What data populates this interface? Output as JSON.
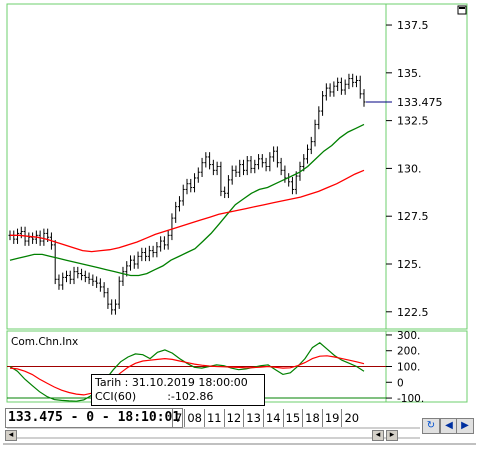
{
  "chart_data": [
    {
      "type": "line",
      "title": "",
      "last_price_label": "133.475",
      "ylim": [
        121.6,
        138.6
      ],
      "y_ticks": [
        "137.5",
        "135.",
        "132.5",
        "130.",
        "127.5",
        "125.",
        "122.5"
      ],
      "y_tick_values": [
        137.5,
        135,
        132.5,
        130,
        127.5,
        125,
        122.5
      ],
      "grid": false,
      "series": [
        {
          "style": "bars",
          "color": "#000000",
          "values": [
            126.5,
            126.3,
            126.6,
            126.7,
            126.2,
            126.4,
            126.3,
            126.5,
            126.2,
            126.6,
            126.4,
            126.0,
            124.2,
            123.9,
            124.3,
            124.4,
            124.2,
            124.6,
            124.5,
            124.4,
            124.3,
            124.2,
            124.1,
            124.0,
            123.8,
            123.5,
            122.9,
            122.6,
            122.9,
            124.1,
            124.6,
            124.9,
            125.2,
            125.0,
            125.4,
            125.6,
            125.4,
            125.7,
            125.6,
            125.9,
            126.2,
            126.0,
            126.5,
            127.4,
            128.0,
            128.3,
            128.9,
            129.2,
            129.0,
            129.5,
            129.8,
            130.3,
            130.6,
            130.2,
            129.9,
            130.1,
            128.8,
            128.7,
            129.4,
            129.9,
            129.8,
            130.2,
            129.9,
            130.4,
            130.0,
            130.2,
            130.5,
            130.3,
            130.1,
            130.6,
            130.9,
            130.3,
            129.9,
            129.5,
            129.3,
            128.9,
            129.6,
            130.1,
            130.5,
            131.0,
            131.4,
            132.3,
            133.0,
            133.8,
            134.2,
            134.0,
            134.3,
            134.5,
            134.1,
            134.4,
            134.7,
            134.5,
            134.6,
            133.9,
            133.475
          ]
        },
        {
          "color": "#008000",
          "values": [
            125.2,
            125.3,
            125.4,
            125.5,
            125.5,
            125.4,
            125.3,
            125.2,
            125.1,
            125.0,
            124.9,
            124.8,
            124.7,
            124.6,
            124.5,
            124.4,
            124.4,
            124.5,
            124.7,
            124.9,
            125.2,
            125.4,
            125.6,
            125.8,
            126.2,
            126.6,
            127.1,
            127.6,
            128.1,
            128.4,
            128.7,
            128.9,
            129.0,
            129.2,
            129.4,
            129.6,
            129.8,
            130.1,
            130.5,
            130.9,
            131.2,
            131.6,
            131.9,
            132.1,
            132.3
          ]
        },
        {
          "color": "#ff0000",
          "values": [
            126.5,
            126.5,
            126.45,
            126.4,
            126.3,
            126.15,
            126.0,
            125.85,
            125.7,
            125.65,
            125.7,
            125.75,
            125.85,
            126.0,
            126.15,
            126.35,
            126.55,
            126.7,
            126.85,
            127.0,
            127.15,
            127.3,
            127.45,
            127.6,
            127.7,
            127.8,
            127.9,
            128.0,
            128.1,
            128.2,
            128.3,
            128.4,
            128.5,
            128.65,
            128.8,
            129.0,
            129.2,
            129.45,
            129.7,
            129.9
          ]
        }
      ],
      "x_ticks": [
        "7",
        "08",
        "11",
        "12",
        "13",
        "14",
        "15",
        "18",
        "19",
        "20"
      ]
    },
    {
      "type": "line",
      "title": "Com.Chn.Inx",
      "ylim": [
        -125,
        325
      ],
      "y_ticks": [
        "300.",
        "200.",
        "100.",
        "0",
        "-100."
      ],
      "y_tick_values": [
        300,
        200,
        100,
        0,
        -100
      ],
      "reference_lines": [
        100,
        -100
      ],
      "series": [
        {
          "color": "#008000",
          "values": [
            100,
            70,
            20,
            -20,
            -60,
            -90,
            -110,
            -115,
            -118,
            -120,
            -112,
            -85,
            -40,
            20,
            80,
            130,
            160,
            180,
            175,
            150,
            190,
            205,
            185,
            150,
            120,
            95,
            90,
            100,
            110,
            105,
            90,
            80,
            85,
            95,
            105,
            110,
            80,
            50,
            60,
            100,
            150,
            220,
            250,
            210,
            170,
            140,
            120,
            100,
            70
          ]
        },
        {
          "color": "#ff0000",
          "values": [
            90,
            85,
            70,
            50,
            20,
            -5,
            -30,
            -50,
            -65,
            -75,
            -80,
            -70,
            -50,
            -20,
            20,
            60,
            95,
            120,
            135,
            140,
            145,
            150,
            145,
            135,
            125,
            115,
            108,
            103,
            100,
            98,
            96,
            94,
            92,
            93,
            96,
            100,
            95,
            90,
            92,
            105,
            125,
            150,
            165,
            168,
            160,
            150,
            140,
            130,
            118
          ]
        }
      ]
    }
  ],
  "tooltip": {
    "date_line": "Tarih : 31.10.2019 18:00:00",
    "indicator_name": "CCI(60)",
    "indicator_value": ":-102.86"
  },
  "status_text": "133.475 - 0 - 18:10:01"
}
